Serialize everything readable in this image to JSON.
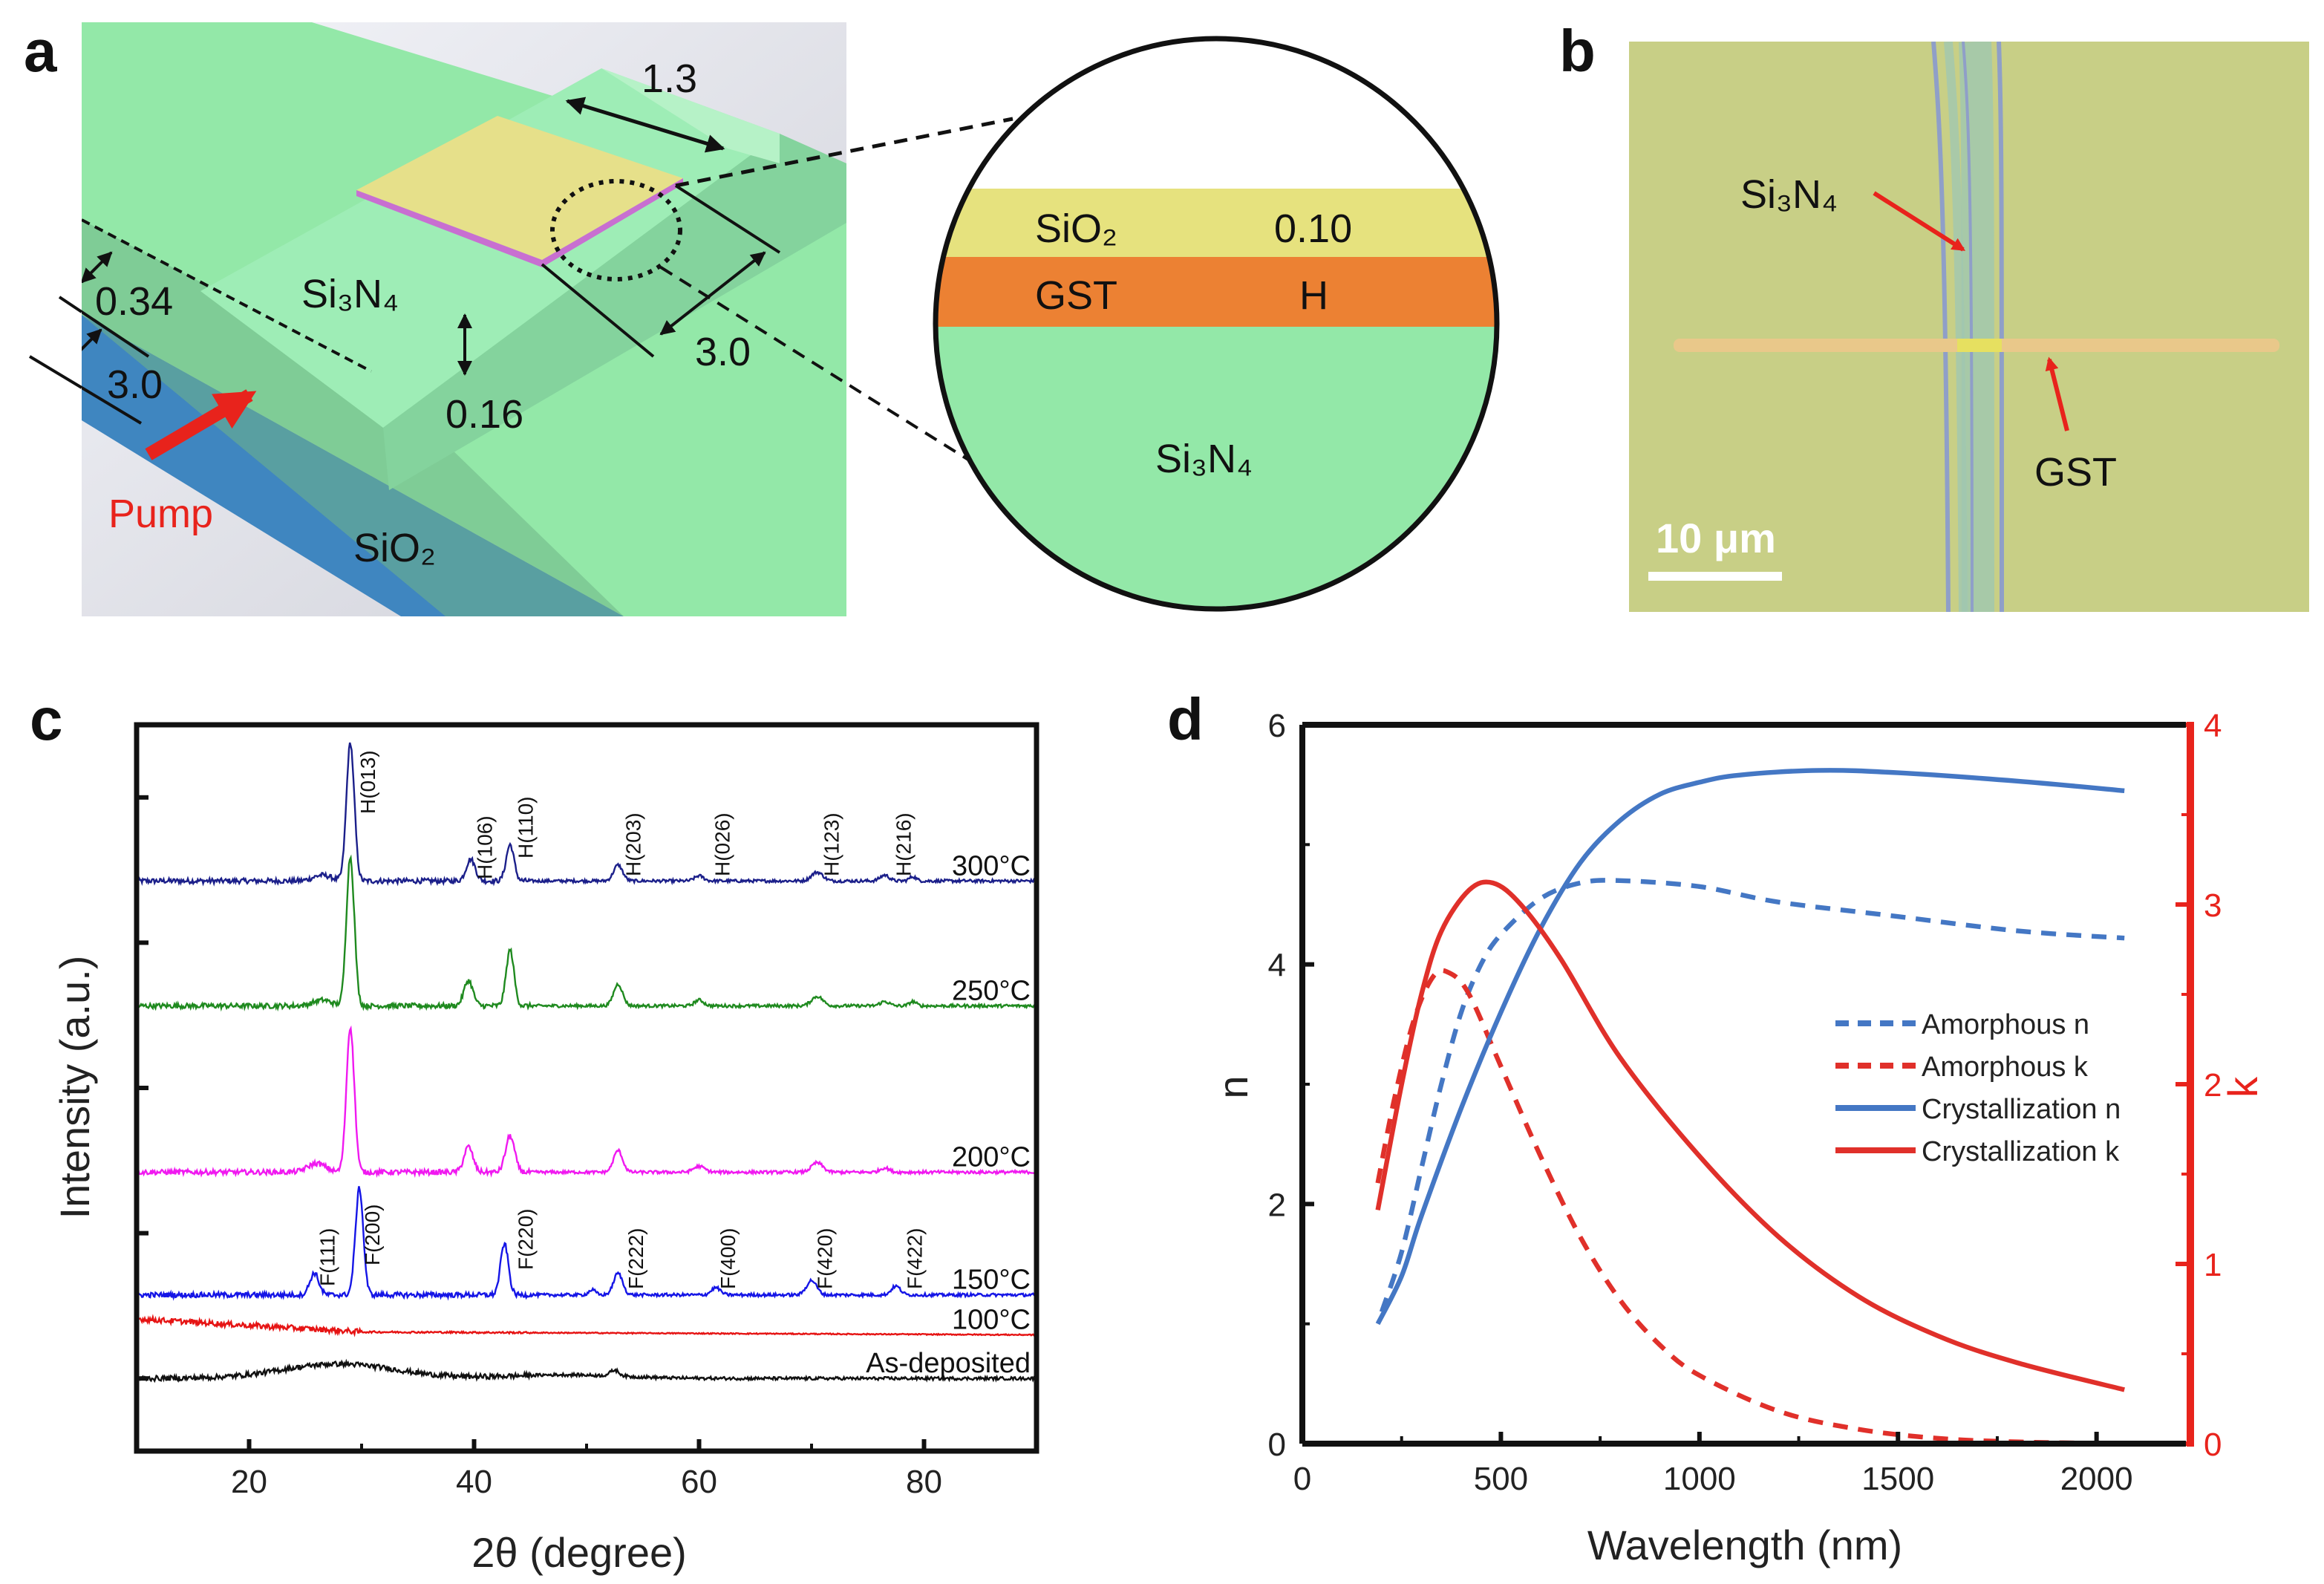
{
  "panel_letters": {
    "a": "a",
    "b": "b",
    "c": "c",
    "d": "d"
  },
  "panel_a": {
    "labels": {
      "dim_top": "1.3",
      "dim_right": "3.0",
      "dim_rib": "0.34",
      "dim_left": "3.0",
      "dim_etch": "0.16",
      "waveguide": "Si₃N₄",
      "substrate": "SiO₂",
      "pump": "Pump"
    },
    "inset": {
      "layers": [
        {
          "material": "SiO₂",
          "value": "0.10",
          "color": "#e6e27e"
        },
        {
          "material": "GST",
          "value": "H",
          "color": "#ec8133"
        },
        {
          "material": "Si₃N₄",
          "value": "",
          "color": "#93e8a8"
        }
      ]
    },
    "colors": {
      "waveguide": "#93e8a8",
      "substrate": "#3f86c0",
      "pump": "#e8231c",
      "gst_pad": "#e6e08a"
    }
  },
  "panel_b": {
    "labels": {
      "waveguide": "Si₃N₄",
      "gst": "GST",
      "scale_bar": "10 μm"
    }
  },
  "chart_data": [
    {
      "type": "line",
      "title": "",
      "xlabel": "2θ (degree)",
      "ylabel": "Intensity (a.u.)",
      "xlim": [
        10,
        90
      ],
      "ylim": [
        0,
        100
      ],
      "xticks": [
        20,
        40,
        60,
        80
      ],
      "grid": false,
      "series": [
        {
          "name": "300°C",
          "color": "#1b1f8a",
          "baseline": 78.5,
          "peaks": [
            [
              26.5,
              0.8,
              0.8
            ],
            [
              29,
              19,
              0.35
            ],
            [
              39.7,
              3,
              0.4
            ],
            [
              43.2,
              5,
              0.35
            ],
            [
              52.8,
              2.2,
              0.4
            ],
            [
              60,
              0.7,
              0.4
            ],
            [
              70.5,
              1.2,
              0.5
            ],
            [
              76.5,
              0.8,
              0.4
            ],
            [
              79,
              0.6,
              0.3
            ]
          ]
        },
        {
          "name": "250°C",
          "color": "#1f8a1f",
          "baseline": 61.3,
          "peaks": [
            [
              26.5,
              0.8,
              0.8
            ],
            [
              29,
              20.5,
              0.35
            ],
            [
              39.5,
              3.5,
              0.4
            ],
            [
              43.2,
              7.7,
              0.35
            ],
            [
              52.8,
              3,
              0.4
            ],
            [
              60,
              0.8,
              0.4
            ],
            [
              70.5,
              1.3,
              0.5
            ],
            [
              76.5,
              0.6,
              0.4
            ],
            [
              79,
              0.6,
              0.3
            ]
          ]
        },
        {
          "name": "200°C",
          "color": "#f019f0",
          "baseline": 38.4,
          "peaks": [
            [
              26,
              1.2,
              0.8
            ],
            [
              29,
              20,
              0.35
            ],
            [
              39.5,
              3.5,
              0.4
            ],
            [
              43.2,
              5,
              0.4
            ],
            [
              52.8,
              3,
              0.4
            ],
            [
              60,
              0.8,
              0.5
            ],
            [
              70.5,
              1.3,
              0.5
            ],
            [
              76.5,
              0.6,
              0.4
            ]
          ]
        },
        {
          "name": "150°C",
          "color": "#1515e6",
          "baseline": 21.5,
          "peaks": [
            [
              25.8,
              3,
              0.4
            ],
            [
              29.8,
              14.7,
              0.35
            ],
            [
              42.7,
              7,
              0.35
            ],
            [
              50.5,
              0.7,
              0.3
            ],
            [
              52.8,
              3,
              0.4
            ],
            [
              61.5,
              1,
              0.4
            ],
            [
              70,
              2,
              0.45
            ],
            [
              77.5,
              1.2,
              0.4
            ]
          ]
        },
        {
          "name": "100°C",
          "color": "#e61414",
          "baseline": 16,
          "slope": [
            [
              10,
              2.2
            ],
            [
              30,
              0.4
            ],
            [
              90,
              0
            ]
          ],
          "peaks": []
        },
        {
          "name": "As-deposited",
          "color": "#111111",
          "baseline": 10,
          "peaks": [
            [
              28,
              2,
              5
            ],
            [
              48,
              0.5,
              5
            ],
            [
              52.5,
              0.8,
              0.4
            ]
          ]
        }
      ],
      "peak_labels": {
        "hexagonal": [
          {
            "text": "H(013)",
            "theta": 31.2
          },
          {
            "text": "H(106)",
            "theta": 41.6
          },
          {
            "text": "H(110)",
            "theta": 45.2
          },
          {
            "text": "H(203)",
            "theta": 54.8
          },
          {
            "text": "H(026)",
            "theta": 62.7
          },
          {
            "text": "H(123)",
            "theta": 72.4
          },
          {
            "text": "H(216)",
            "theta": 78.8
          }
        ],
        "fcc": [
          {
            "text": "F(111)",
            "theta": 27.6
          },
          {
            "text": "F(200)",
            "theta": 31.6
          },
          {
            "text": "F(220)",
            "theta": 45.2
          },
          {
            "text": "F(222)",
            "theta": 55
          },
          {
            "text": "F(400)",
            "theta": 63.2
          },
          {
            "text": "F(420)",
            "theta": 71.8
          },
          {
            "text": "F(422)",
            "theta": 79.8
          }
        ]
      }
    },
    {
      "type": "line",
      "title": "",
      "xlabel": "Wavelength (nm)",
      "ylabel": "n",
      "y2label": "k",
      "xlim": [
        0,
        2225
      ],
      "ylim": [
        0,
        6
      ],
      "y2lim": [
        0,
        4
      ],
      "xticks": [
        0,
        500,
        1000,
        1500,
        2000
      ],
      "yticks": [
        0,
        2,
        4,
        6
      ],
      "y2ticks": [
        0,
        1,
        2,
        3,
        4
      ],
      "legend": "center-right",
      "axis2_color": "#e8231c",
      "series": [
        {
          "name": "Amorphous n",
          "axis": "left",
          "style": "dashed",
          "color": "#4477c4",
          "x": [
            200,
            250,
            300,
            350,
            400,
            450,
            500,
            600,
            700,
            800,
            1000,
            1200,
            1500,
            1800,
            2070
          ],
          "y": [
            1.1,
            1.6,
            2.3,
            3.0,
            3.6,
            4.0,
            4.25,
            4.55,
            4.68,
            4.7,
            4.65,
            4.52,
            4.4,
            4.28,
            4.22
          ]
        },
        {
          "name": "Amorphous k",
          "axis": "right",
          "style": "dashed",
          "color": "#e0302a",
          "x": [
            190,
            230,
            280,
            330,
            370,
            420,
            500,
            600,
            700,
            800,
            900,
            1000,
            1200,
            1400,
            1600,
            1800,
            2070
          ],
          "y": [
            1.45,
            1.9,
            2.35,
            2.6,
            2.62,
            2.5,
            2.1,
            1.6,
            1.15,
            0.8,
            0.55,
            0.38,
            0.18,
            0.08,
            0.03,
            0.01,
            0.0
          ]
        },
        {
          "name": "Crystallization n",
          "axis": "left",
          "style": "solid",
          "color": "#4477c4",
          "x": [
            190,
            250,
            300,
            400,
            500,
            600,
            700,
            800,
            900,
            1000,
            1100,
            1300,
            1500,
            1800,
            2070
          ],
          "y": [
            1.0,
            1.4,
            1.9,
            2.8,
            3.6,
            4.3,
            4.85,
            5.2,
            5.42,
            5.52,
            5.58,
            5.62,
            5.6,
            5.53,
            5.45
          ]
        },
        {
          "name": "Crystallization k",
          "axis": "right",
          "style": "solid",
          "color": "#e0302a",
          "x": [
            190,
            250,
            300,
            350,
            420,
            480,
            550,
            650,
            800,
            1000,
            1200,
            1400,
            1600,
            1800,
            2070
          ],
          "y": [
            1.3,
            2.0,
            2.5,
            2.85,
            3.08,
            3.12,
            3.0,
            2.7,
            2.15,
            1.6,
            1.15,
            0.82,
            0.6,
            0.45,
            0.3
          ]
        }
      ]
    }
  ]
}
